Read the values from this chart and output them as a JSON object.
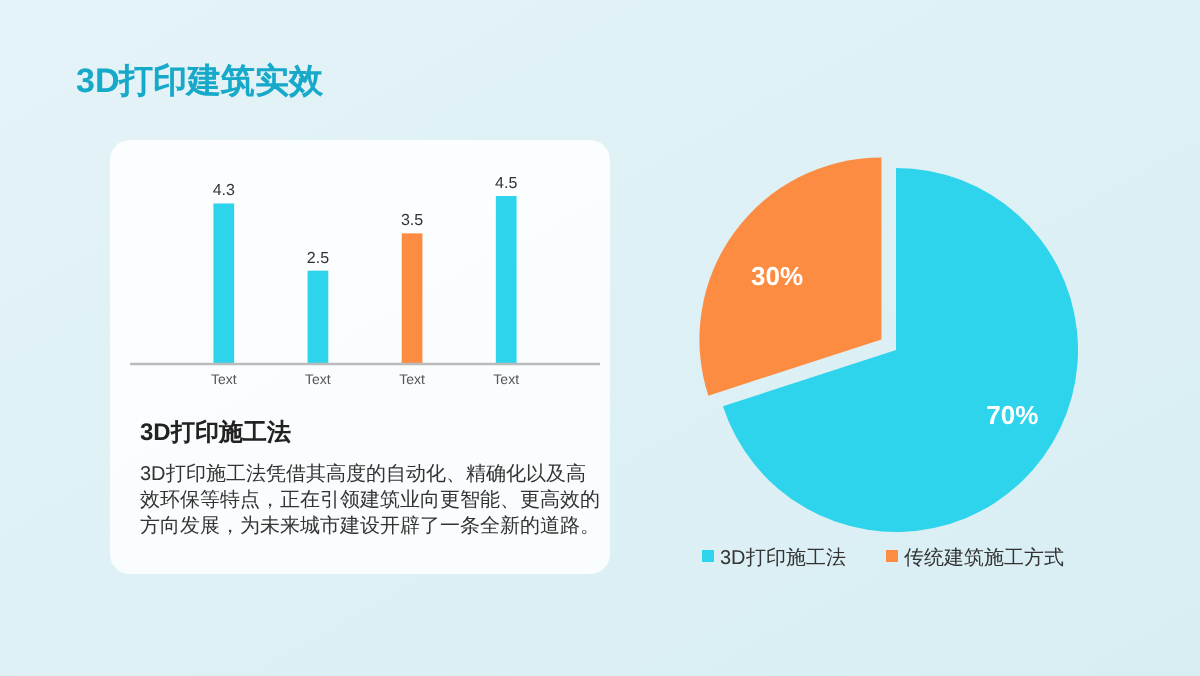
{
  "chart_data": [
    {
      "type": "bar",
      "title": "3D打印建筑实效",
      "categories": [
        "Text",
        "Text",
        "Text",
        "Text"
      ],
      "values": [
        4.3,
        2.5,
        3.5,
        4.5
      ],
      "colors": [
        "#2ed3ec",
        "#2ed3ec",
        "#fd8c43",
        "#2ed3ec"
      ],
      "relative": false,
      "data_labels": true,
      "annotations": [
        "3D打印施工法",
        "3D打印施工法凭借其高度的自动化、精确化以及高效环保等特点，正在引领建筑业向更智能、更高效的方向发展，为未来城市建设开辟了一条全新的道路。"
      ]
    },
    {
      "type": "pie",
      "categories": [
        "3D打印施工法",
        "传统建筑施工方式"
      ],
      "values": [
        70,
        30
      ],
      "colors": [
        "#2ed3ec",
        "#fd8c43"
      ],
      "legend": "bottom",
      "value_labels": [
        "70%",
        "30%"
      ]
    }
  ]
}
